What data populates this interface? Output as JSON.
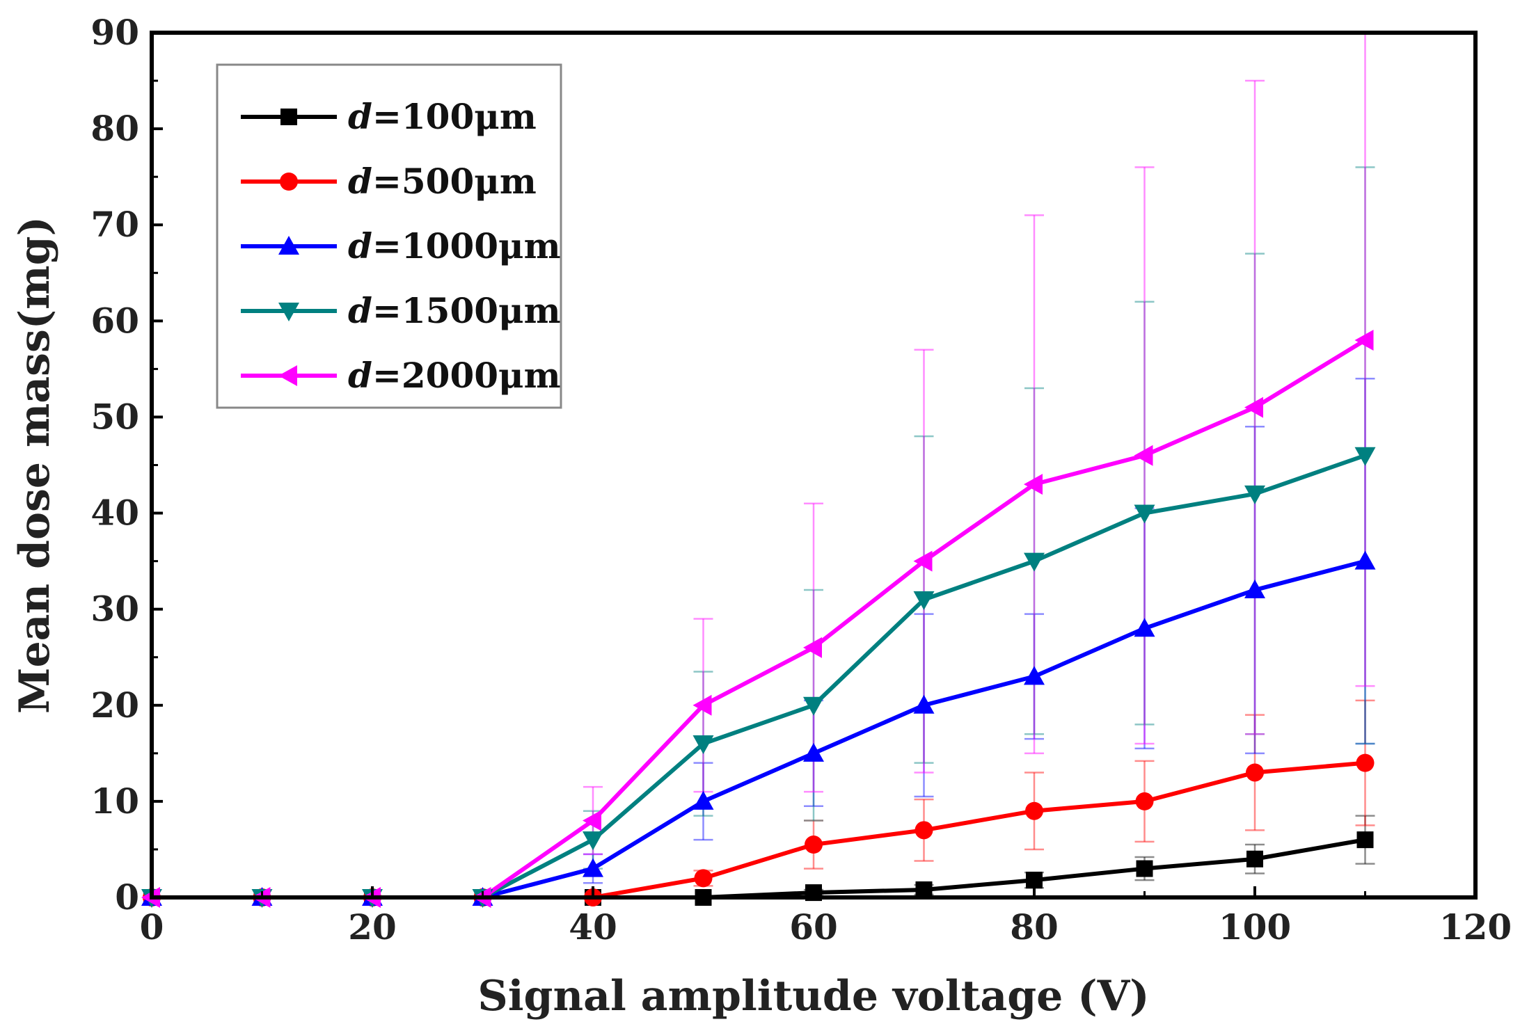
{
  "chart_data": {
    "type": "line",
    "xlabel": "Signal amplitude voltage (V)",
    "ylabel": "Mean dose mass(mg)",
    "xlim": [
      0,
      120
    ],
    "ylim": [
      0,
      90
    ],
    "xticks": [
      0,
      20,
      40,
      60,
      80,
      100,
      120
    ],
    "yticks": [
      0,
      10,
      20,
      30,
      40,
      50,
      60,
      70,
      80,
      90
    ],
    "grid": false,
    "legend_position": "top-left",
    "x": [
      0,
      10,
      20,
      30,
      40,
      50,
      60,
      70,
      80,
      90,
      100,
      110
    ],
    "series": [
      {
        "name": "d=100μm",
        "label_var": "d",
        "label_rest": "=100μm",
        "color": "#000000",
        "marker": "square",
        "values": [
          0,
          0,
          0,
          0,
          0,
          0,
          0.5,
          0.8,
          1.8,
          3,
          4,
          6
        ],
        "errors": [
          0,
          0,
          0,
          0,
          0,
          0,
          0.3,
          0.5,
          0.8,
          1.2,
          1.5,
          2.5
        ]
      },
      {
        "name": "d=500μm",
        "label_var": "d",
        "label_rest": "=500μm",
        "color": "#ff0000",
        "marker": "circle",
        "values": [
          0,
          0,
          0,
          0,
          0,
          2,
          5.5,
          7,
          9,
          10,
          13,
          14
        ],
        "errors": [
          0,
          0,
          0,
          0,
          0,
          0.8,
          2.5,
          3.2,
          4,
          4.2,
          6,
          6.5
        ]
      },
      {
        "name": "d=1000μm",
        "label_var": "d",
        "label_rest": "=1000μm",
        "color": "#0000ff",
        "marker": "triangle-up",
        "values": [
          0,
          0,
          0,
          0,
          3,
          10,
          15,
          20,
          23,
          28,
          32,
          35
        ],
        "errors": [
          0,
          0,
          0,
          0,
          1.5,
          4,
          5.5,
          9.5,
          6.5,
          12.5,
          17,
          19
        ]
      },
      {
        "name": "d=1500μm",
        "label_var": "d",
        "label_rest": "=1500μm",
        "color": "#008080",
        "marker": "triangle-down",
        "values": [
          0,
          0,
          0,
          0,
          6,
          16,
          20,
          31,
          35,
          40,
          42,
          46
        ],
        "errors": [
          0,
          0,
          0,
          0,
          3,
          7.5,
          12,
          17,
          18,
          22,
          25,
          30
        ]
      },
      {
        "name": "d=2000μm",
        "label_var": "d",
        "label_rest": "=2000μm",
        "color": "#ff00ff",
        "marker": "triangle-left",
        "values": [
          0,
          0,
          0,
          0,
          8,
          20,
          26,
          35,
          43,
          46,
          51,
          58
        ],
        "errors": [
          0,
          0,
          0,
          0,
          3.5,
          9,
          15,
          22,
          28,
          30,
          34,
          36
        ]
      }
    ]
  }
}
